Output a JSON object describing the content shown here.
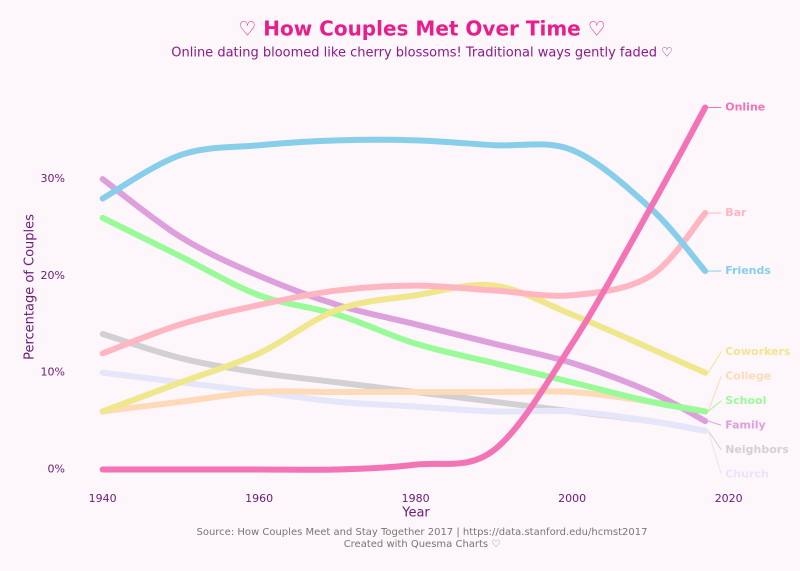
{
  "chart_data": {
    "type": "line",
    "title": "♡ How Couples Met Over Time ♡",
    "subtitle": "Online dating bloomed like cherry blossoms! Traditional ways gently faded ♡",
    "x_label": "Year",
    "y_label": "Percentage of Couples",
    "source": "Source: How Couples Meet and Stay Together 2017 | https://data.stanford.edu/hcmst2017",
    "credit": "Created with Quesma Charts ♡",
    "x": [
      1940,
      1950,
      1960,
      1970,
      1980,
      1990,
      2000,
      2010,
      2017
    ],
    "xlim": [
      1938,
      2024
    ],
    "xticks": [
      1940,
      1960,
      1980,
      2000,
      2020
    ],
    "ylim": [
      -1.5,
      39
    ],
    "yticks": [
      {
        "value": 0,
        "label": "0%"
      },
      {
        "value": 10,
        "label": "10%"
      },
      {
        "value": 20,
        "label": "20%"
      },
      {
        "value": 30,
        "label": "30%"
      }
    ],
    "grid": false,
    "series": [
      {
        "name": "Neighbors",
        "color": "#d3d0d3",
        "values": [
          14,
          11.5,
          10,
          9,
          8,
          7,
          6,
          5,
          4
        ]
      },
      {
        "name": "Church",
        "color": "#e6e6fa",
        "values": [
          10,
          9,
          8,
          7,
          6.5,
          6,
          6,
          5,
          4
        ]
      },
      {
        "name": "College",
        "color": "#ffdab9",
        "values": [
          6,
          7,
          8,
          8,
          8,
          8,
          8,
          7,
          6
        ]
      },
      {
        "name": "Family",
        "color": "#dda0dd",
        "values": [
          30,
          24,
          20,
          17,
          15,
          13,
          11,
          8,
          5
        ]
      },
      {
        "name": "School",
        "color": "#98fb98",
        "values": [
          26,
          22,
          18,
          16,
          13,
          11,
          9,
          7,
          6
        ]
      },
      {
        "name": "Coworkers",
        "color": "#f0e68c",
        "values": [
          6,
          9,
          12,
          16.5,
          18,
          19,
          16,
          12.5,
          10
        ]
      },
      {
        "name": "Bar",
        "color": "#ffb6c1",
        "values": [
          12,
          15,
          17,
          18.5,
          19,
          18.5,
          18,
          20,
          26.5
        ]
      },
      {
        "name": "Friends",
        "color": "#87ceeb",
        "values": [
          28,
          32.5,
          33.5,
          34,
          34,
          33.5,
          33,
          27,
          20.5
        ]
      },
      {
        "name": "Online",
        "color": "#f472b6",
        "values": [
          0,
          0,
          0,
          0,
          0.5,
          2,
          13,
          27,
          37.4
        ]
      }
    ]
  }
}
